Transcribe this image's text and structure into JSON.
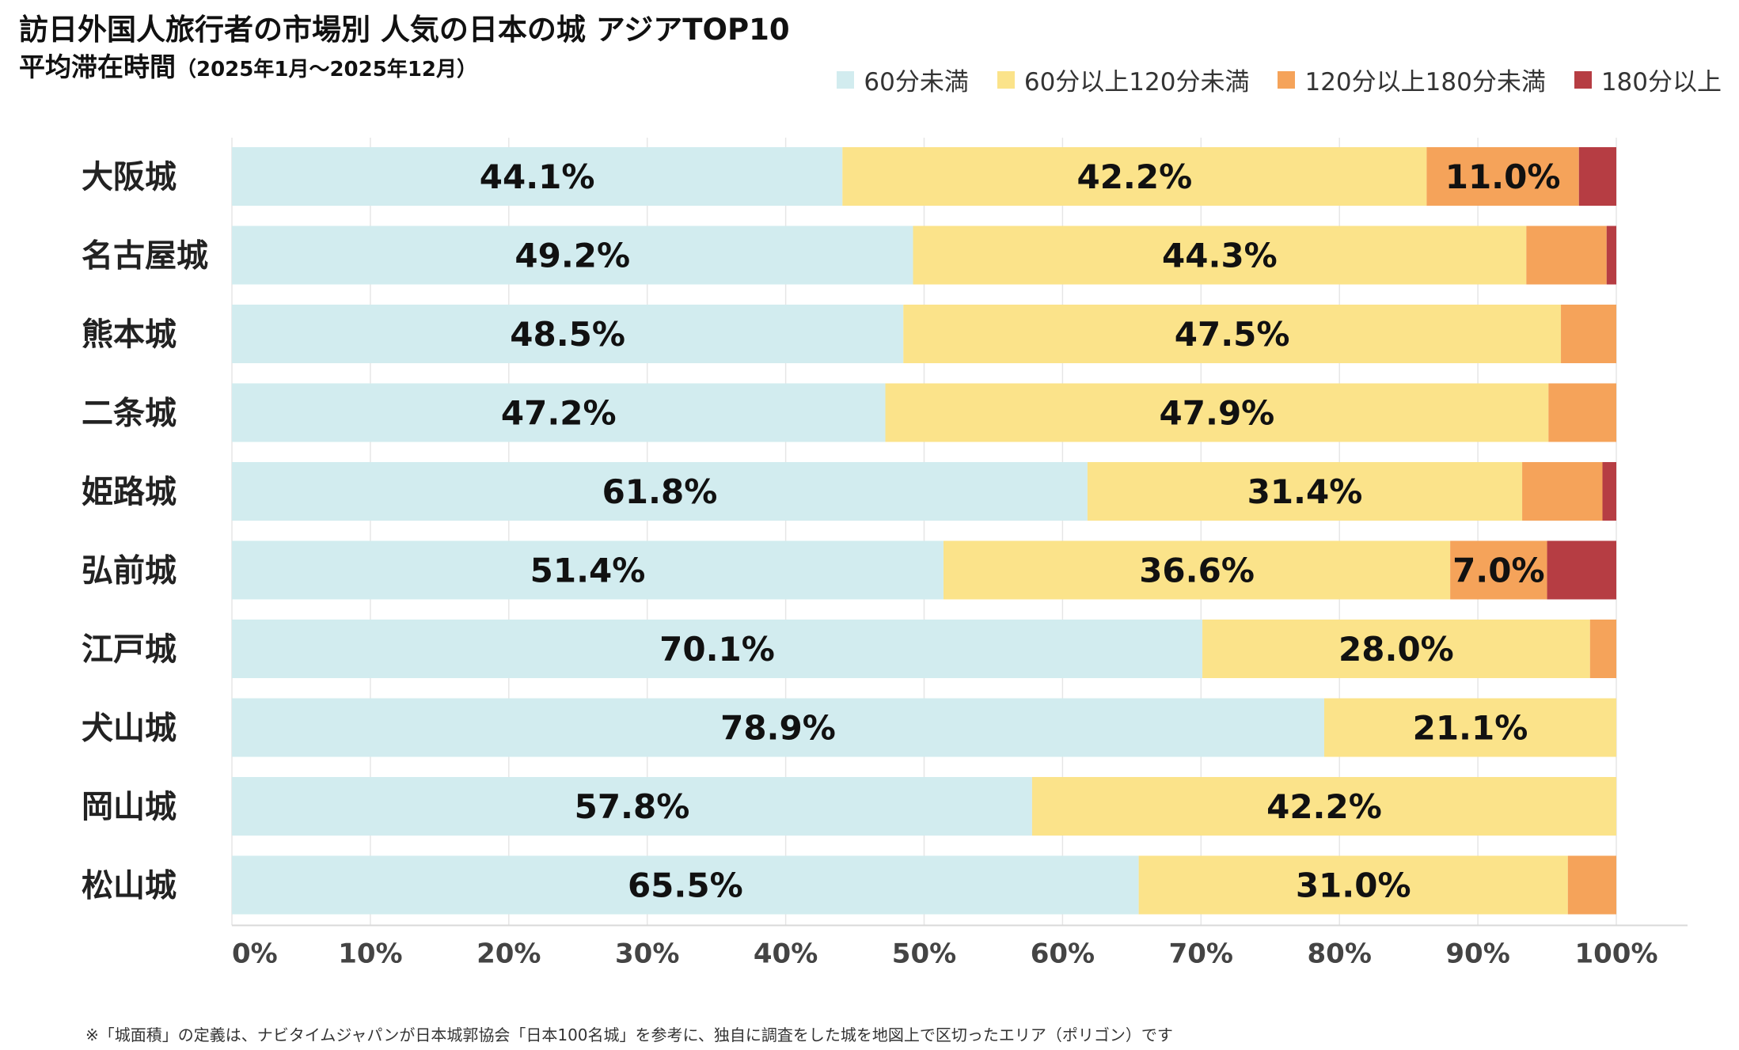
{
  "header": {
    "title": "訪日外国人旅行者の市場別 人気の日本の城 アジアTOP10",
    "subtitle": "平均滞在時間",
    "period": "（2025年1月～2025年12月）"
  },
  "footnote": "※「城面積」の定義は、ナビタイムジャパンが日本城郭協会「日本100名城」を参考に、独自に調査をした城を地図上で区切ったエリア（ポリゴン）です",
  "colors": {
    "lt60": "#d2ecef",
    "60to120": "#fbe38a",
    "120to180": "#f5a35a",
    "gte180": "#b63d43",
    "grid": "#e6e6e6",
    "text": "#111111"
  },
  "chart_data": {
    "type": "bar",
    "orientation": "horizontal",
    "stacked": "percent",
    "title": "訪日外国人旅行者の市場別 人気の日本の城 アジアTOP10 平均滞在時間（2025年1月～2025年12月）",
    "categories": [
      "大阪城",
      "名古屋城",
      "熊本城",
      "二条城",
      "姫路城",
      "弘前城",
      "江戸城",
      "犬山城",
      "岡山城",
      "松山城"
    ],
    "series": [
      {
        "name": "60分未満",
        "color": "#d2ecef",
        "values": [
          44.1,
          49.2,
          48.5,
          47.2,
          61.8,
          51.4,
          70.1,
          78.9,
          57.8,
          65.5
        ],
        "labels": [
          "44.1%",
          "49.2%",
          "48.5%",
          "47.2%",
          "61.8%",
          "51.4%",
          "70.1%",
          "78.9%",
          "57.8%",
          "65.5%"
        ]
      },
      {
        "name": "60分以上120分未満",
        "color": "#fbe38a",
        "values": [
          42.2,
          44.3,
          47.5,
          47.9,
          31.4,
          36.6,
          28.0,
          21.1,
          42.2,
          31.0
        ],
        "labels": [
          "42.2%",
          "44.3%",
          "47.5%",
          "47.9%",
          "31.4%",
          "36.6%",
          "28.0%",
          "21.1%",
          "42.2%",
          "31.0%"
        ]
      },
      {
        "name": "120分以上180分未満",
        "color": "#f5a35a",
        "values": [
          11.0,
          5.8,
          4.0,
          4.9,
          5.8,
          7.0,
          1.9,
          0.0,
          0.0,
          3.5
        ],
        "labels": [
          "11.0%",
          "",
          "",
          "",
          "",
          "7.0%",
          "",
          "",
          "",
          ""
        ]
      },
      {
        "name": "180分以上",
        "color": "#b63d43",
        "values": [
          2.7,
          0.7,
          0.0,
          0.0,
          1.0,
          5.0,
          0.0,
          0.0,
          0.0,
          0.0
        ],
        "labels": [
          "",
          "",
          "",
          "",
          "",
          "",
          "",
          "",
          "",
          ""
        ]
      }
    ],
    "x_ticks": [
      "0%",
      "10%",
      "20%",
      "30%",
      "40%",
      "50%",
      "60%",
      "70%",
      "80%",
      "90%",
      "100%"
    ],
    "xlim": [
      0,
      100
    ],
    "grid": true,
    "legend": "top-right",
    "xlabel": "",
    "ylabel": ""
  }
}
